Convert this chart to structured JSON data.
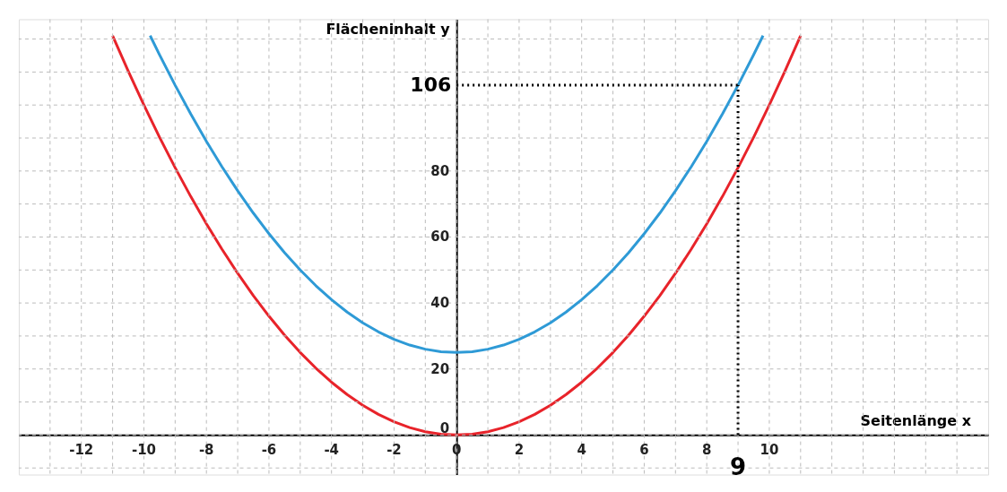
{
  "chart_data": {
    "type": "line",
    "xlabel": "Seitenlänge x",
    "ylabel": "Flächeninhalt y",
    "xlim": [
      -14,
      17
    ],
    "ylim": [
      -12,
      126
    ],
    "xticks": [
      {
        "value": -13,
        "label": null
      },
      -12,
      {
        "value": -11,
        "label": null
      },
      -10,
      {
        "value": -9,
        "label": null
      },
      -8,
      {
        "value": -7,
        "label": null
      },
      -6,
      {
        "value": -5,
        "label": null
      },
      -4,
      {
        "value": -3,
        "label": null
      },
      -2,
      {
        "value": -1,
        "label": null
      },
      0,
      {
        "value": 1,
        "label": null
      },
      2,
      {
        "value": 3,
        "label": null
      },
      4,
      {
        "value": 5,
        "label": null
      },
      6,
      {
        "value": 7,
        "label": null
      },
      8,
      {
        "value": 9,
        "label": null
      },
      10,
      {
        "value": 11,
        "label": null
      },
      {
        "value": 12,
        "label": null
      },
      {
        "value": 13,
        "label": null
      },
      {
        "value": 14,
        "label": null
      },
      {
        "value": 15,
        "label": null
      },
      {
        "value": 16,
        "label": null
      }
    ],
    "yticks": [
      {
        "value": -10,
        "label": null
      },
      0,
      {
        "value": 10,
        "label": null
      },
      20,
      {
        "value": 30,
        "label": null
      },
      40,
      {
        "value": 50,
        "label": null
      },
      60,
      {
        "value": 70,
        "label": null
      },
      80,
      {
        "value": 90,
        "label": null
      },
      {
        "value": 100,
        "label": null
      },
      {
        "value": 110,
        "label": null
      },
      {
        "value": 120,
        "label": null
      }
    ],
    "grid": true,
    "line_style": "solid",
    "marker": "none",
    "series": [
      {
        "color": "#e8232a",
        "x": [
          -11,
          -10.5,
          -10,
          -9.5,
          -9,
          -8.5,
          -8,
          -7.5,
          -7,
          -6.5,
          -6,
          -5.5,
          -5,
          -4.5,
          -4,
          -3.5,
          -3,
          -2.5,
          -2,
          -1.5,
          -1,
          -0.5,
          0,
          0.5,
          1,
          1.5,
          2,
          2.5,
          3,
          3.5,
          4,
          4.5,
          5,
          5.5,
          6,
          6.5,
          7,
          7.5,
          8,
          8.5,
          9,
          9.5,
          10,
          10.5,
          11
        ],
        "values": [
          121,
          110.25,
          100,
          90.25,
          81,
          72.25,
          64,
          56.25,
          49,
          42.25,
          36,
          30.25,
          25,
          20.25,
          16,
          12.25,
          9,
          6.25,
          4,
          2.25,
          1,
          0.25,
          0,
          0.25,
          1,
          2.25,
          4,
          6.25,
          9,
          12.25,
          16,
          20.25,
          25,
          30.25,
          36,
          42.25,
          49,
          56.25,
          64,
          72.25,
          81,
          90.25,
          100,
          110.25,
          121
        ]
      },
      {
        "color": "#2e9ad6",
        "x": [
          -9.8,
          -9.5,
          -9,
          -8.5,
          -8,
          -7.5,
          -7,
          -6.5,
          -6,
          -5.5,
          -5,
          -4.5,
          -4,
          -3.5,
          -3,
          -2.5,
          -2,
          -1.5,
          -1,
          -0.5,
          0,
          0.5,
          1,
          1.5,
          2,
          2.5,
          3,
          3.5,
          4,
          4.5,
          5,
          5.5,
          6,
          6.5,
          7,
          7.5,
          8,
          8.5,
          9,
          9.5,
          9.8
        ],
        "values": [
          121.04,
          115.25,
          106,
          97.25,
          89,
          81.25,
          74,
          67.25,
          61,
          55.25,
          50,
          45.25,
          41,
          37.25,
          34,
          31.25,
          29,
          27.25,
          26,
          25.25,
          25,
          25.25,
          26,
          27.25,
          29,
          31.25,
          34,
          37.25,
          41,
          45.25,
          50,
          55.25,
          61,
          67.25,
          74,
          81.25,
          89,
          97.25,
          106,
          115.25,
          121.04
        ]
      }
    ],
    "ref_lines": [
      {
        "axis": "y",
        "value": 106,
        "label": "106",
        "color": "#000000",
        "line_style": "dotted"
      },
      {
        "axis": "x",
        "value": 9,
        "label": "9",
        "color": "#000000",
        "line_style": "dotted"
      }
    ]
  }
}
